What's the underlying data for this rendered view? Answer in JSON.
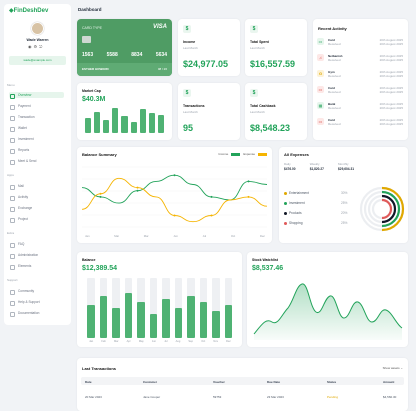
{
  "brand": "FinDeshDev",
  "page_title": "Dashboard",
  "profile": {
    "name": "Wade Warren",
    "email": "wade@example.com"
  },
  "nav": {
    "sections": [
      {
        "title": "Menu",
        "items": [
          "Overview",
          "Payment",
          "Transaction",
          "Wallet",
          "Investment",
          "Reports",
          "Meet & Send"
        ]
      },
      {
        "title": "Apps",
        "items": [
          "Mail",
          "Activity",
          "Exchange",
          "Project"
        ]
      },
      {
        "title": "Extra",
        "items": [
          "FAQ",
          "Administration",
          "Elements"
        ]
      },
      {
        "title": "Support",
        "items": [
          "Community",
          "Help & Support",
          "Documentation"
        ]
      }
    ]
  },
  "credit_card": {
    "type_label": "CARD TYPE",
    "brand": "VISA",
    "number": [
      "1563",
      "5588",
      "8834",
      "5634"
    ],
    "holder": "ESTHER HOWARD",
    "expiry": "08 / 26"
  },
  "stats": {
    "income": {
      "label": "Income",
      "sub": "Last Month",
      "value": "$24,977.05"
    },
    "spent": {
      "label": "Total Spent",
      "sub": "Last Month",
      "value": "$16,557.59"
    },
    "transactions": {
      "label": "Transactions",
      "sub": "Last Month",
      "value": "95"
    },
    "cashback": {
      "label": "Total Cashback",
      "sub": "Last Month",
      "value": "$8,548.23"
    }
  },
  "market_cap": {
    "label": "Market Cap",
    "value": "$40.3M",
    "bars": [
      0.55,
      0.75,
      0.45,
      0.9,
      0.6,
      0.4,
      0.85,
      0.7,
      0.65
    ]
  },
  "recent_activity": {
    "title": "Recent Activity",
    "items": [
      {
        "icon": "▭",
        "name": "Card",
        "sub": "Received",
        "date": "20th August 2025",
        "color": "#22a35a",
        "bg": "#e6f5ec"
      },
      {
        "icon": "♫",
        "name": "Netbanish",
        "sub": "Received",
        "date": "20th August 2025",
        "color": "#d9534f",
        "bg": "#fde8e7"
      },
      {
        "icon": "G",
        "name": "Gym",
        "sub": "Received",
        "date": "20th August 2025",
        "color": "#e0a800",
        "bg": "#fdf3d8"
      },
      {
        "icon": "▭",
        "name": "Card",
        "sub": "Received",
        "date": "20th August 2025",
        "color": "#d9534f",
        "bg": "#fde8e7"
      },
      {
        "icon": "▦",
        "name": "Bank",
        "sub": "Received",
        "date": "20th August 2025",
        "color": "#22a35a",
        "bg": "#e6f5ec"
      },
      {
        "icon": "▭",
        "name": "Card",
        "sub": "Received",
        "date": "20th August 2025",
        "color": "#d9534f",
        "bg": "#fde8e7"
      }
    ]
  },
  "balance_summary": {
    "title": "Balance Summary",
    "legend": [
      {
        "name": "Income",
        "color": "#22a35a"
      },
      {
        "name": "Expense",
        "color": "#f5b400"
      }
    ],
    "x_labels": [
      "Jan",
      "Mar",
      "Mar",
      "Jun",
      "Jul",
      "Oct",
      "Dec"
    ],
    "income": [
      0.7,
      0.55,
      0.45,
      0.65,
      0.8,
      0.9,
      0.75,
      0.55,
      0.5,
      0.8,
      0.75
    ],
    "expense": [
      0.35,
      0.6,
      0.85,
      0.7,
      0.55,
      0.25,
      0.15,
      0.25,
      0.5,
      0.55,
      0.4
    ]
  },
  "all_expenses": {
    "title": "All Expenses",
    "headers": [
      "Daily",
      "Weekly",
      "Monthly"
    ],
    "values": [
      "$476.00",
      "$1,820.27",
      "$29,604.31"
    ],
    "items": [
      {
        "name": "Entertainment",
        "pct": "30%",
        "color": "#e0a800"
      },
      {
        "name": "Investment",
        "pct": "25%",
        "color": "#22a35a"
      },
      {
        "name": "Products",
        "pct": "20%",
        "color": "#111827"
      },
      {
        "name": "Shopping",
        "pct": "25%",
        "color": "#e05a5a"
      }
    ]
  },
  "balance_chart": {
    "label": "Balance",
    "value": "$12,389.54",
    "months": [
      "Jan",
      "Feb",
      "Mar",
      "Apr",
      "May",
      "Jun",
      "Jul",
      "Aug",
      "Sep",
      "Oct",
      "Nov",
      "Dec"
    ],
    "values": [
      0.55,
      0.7,
      0.5,
      0.75,
      0.6,
      0.4,
      0.65,
      0.5,
      0.7,
      0.6,
      0.45,
      0.55
    ]
  },
  "stock": {
    "label": "Stock Watchlist",
    "value": "$8,537.46"
  },
  "last_transactions": {
    "title": "Last Transactions",
    "show_label": "Show assets",
    "headers": [
      "Date",
      "Customer",
      "Voucher",
      "Due Date",
      "Status",
      "Amount"
    ],
    "rows": [
      {
        "date": "20 Mar 2023",
        "customer": "Jane Cooper",
        "voucher": "59753",
        "due": "23 Mar 2023",
        "status": "Pending",
        "amount": "$4,560.30"
      }
    ]
  }
}
